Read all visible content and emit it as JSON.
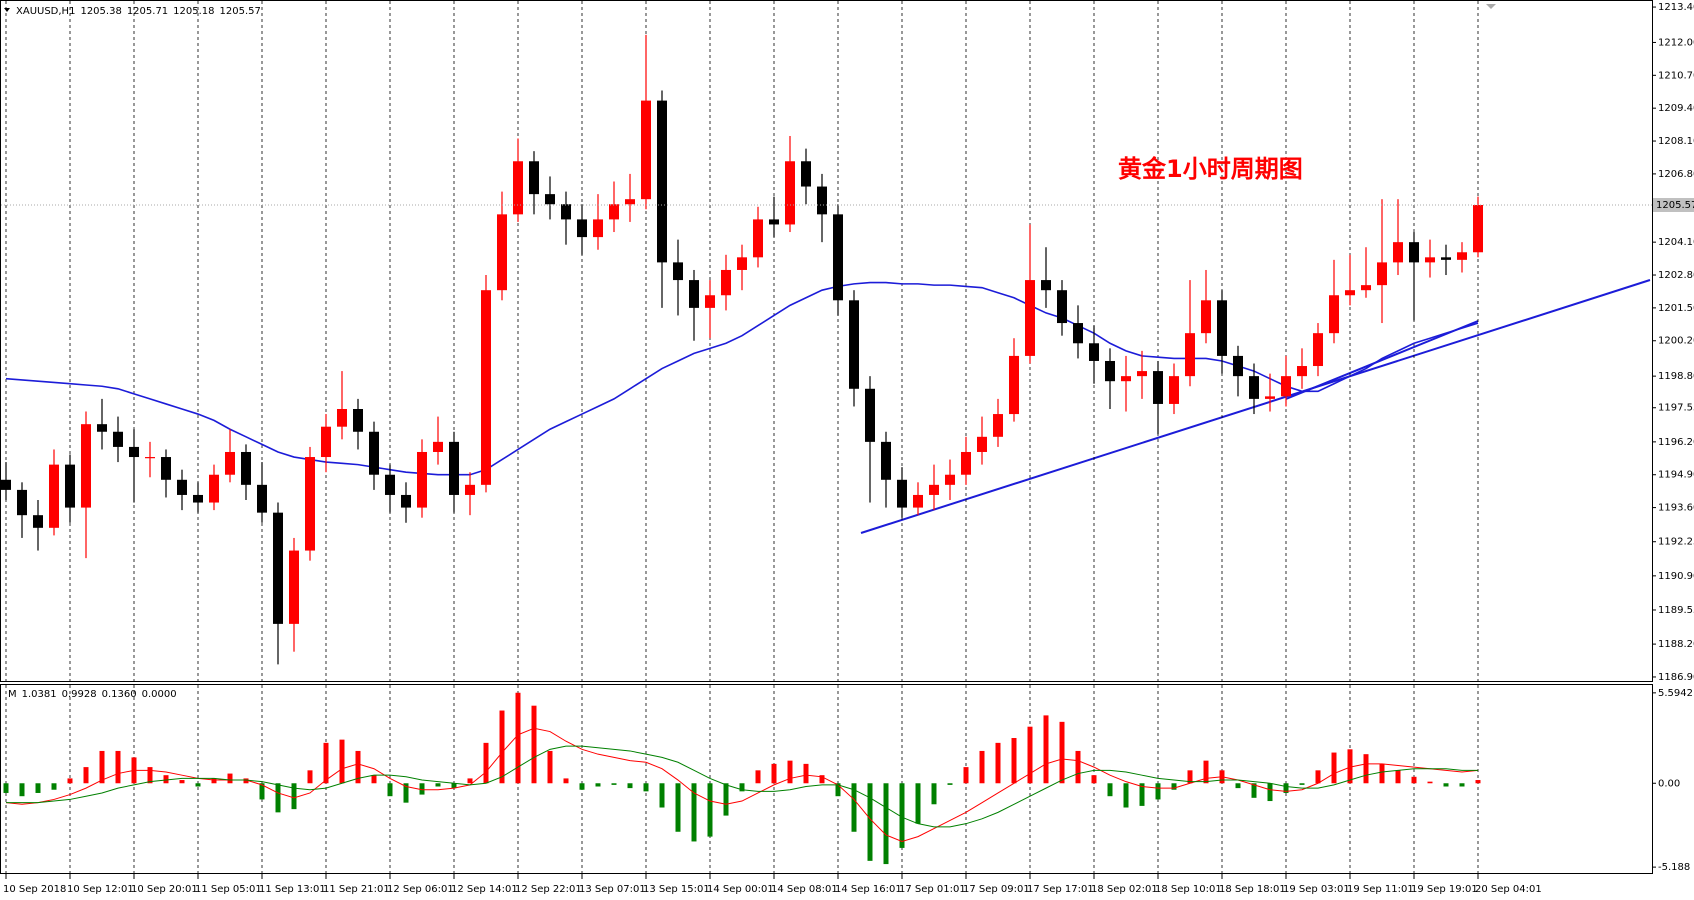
{
  "chart_data": [
    {
      "type": "candlestick",
      "title": "XAUUSD,H1",
      "title_values": [
        1205.38,
        1205.71,
        1205.18,
        1205.57
      ],
      "annotation": "黄金1小时周期图",
      "annotation_color": "#ff0000",
      "categories": [
        "10 Sep 2018",
        null,
        null,
        null,
        "10 Sep 12:01",
        null,
        null,
        null,
        "10 Sep 20:01",
        null,
        null,
        null,
        "11 Sep 05:01",
        null,
        null,
        null,
        "11 Sep 13:01",
        null,
        null,
        null,
        "11 Sep 21:01",
        null,
        null,
        null,
        "12 Sep 06:01",
        null,
        null,
        null,
        "12 Sep 14:01",
        null,
        null,
        null,
        "12 Sep 22:01",
        null,
        null,
        null,
        "13 Sep 07:01",
        null,
        null,
        null,
        "13 Sep 15:01",
        null,
        null,
        null,
        "14 Sep 00:01",
        null,
        null,
        null,
        "14 Sep 08:01",
        null,
        null,
        null,
        "14 Sep 16:01",
        null,
        null,
        null,
        "17 Sep 01:01",
        null,
        null,
        null,
        "17 Sep 09:01",
        null,
        null,
        null,
        "17 Sep 17:01",
        null,
        null,
        null,
        "18 Sep 02:01",
        null,
        null,
        null,
        "18 Sep 10:01",
        null,
        null,
        null,
        "18 Sep 18:01",
        null,
        null,
        null,
        "19 Sep 03:01",
        null,
        null,
        null,
        "19 Sep 11:01",
        null,
        null,
        null,
        "19 Sep 19:01",
        null,
        null,
        null,
        "20 Sep 04:01"
      ],
      "candles": [
        [
          1194.7,
          1195.4,
          1193.9,
          1194.3
        ],
        [
          1194.3,
          1194.6,
          1192.4,
          1193.3
        ],
        [
          1193.3,
          1193.9,
          1191.9,
          1192.8
        ],
        [
          1192.8,
          1195.9,
          1192.5,
          1195.3
        ],
        [
          1195.3,
          1195.7,
          1193.0,
          1193.6
        ],
        [
          1193.6,
          1197.4,
          1191.6,
          1196.9
        ],
        [
          1196.9,
          1197.9,
          1195.9,
          1196.6
        ],
        [
          1196.6,
          1197.2,
          1195.4,
          1196.0
        ],
        [
          1196.0,
          1196.7,
          1193.8,
          1195.6
        ],
        [
          1195.6,
          1196.2,
          1194.8,
          1195.6
        ],
        [
          1195.6,
          1195.9,
          1194.0,
          1194.7
        ],
        [
          1194.7,
          1195.1,
          1193.5,
          1194.1
        ],
        [
          1194.1,
          1194.6,
          1193.4,
          1193.8
        ],
        [
          1193.8,
          1195.3,
          1193.5,
          1194.9
        ],
        [
          1194.9,
          1196.7,
          1194.6,
          1195.8
        ],
        [
          1195.8,
          1196.1,
          1193.9,
          1194.5
        ],
        [
          1194.5,
          1195.4,
          1193.0,
          1193.4
        ],
        [
          1193.4,
          1193.8,
          1187.4,
          1189.0
        ],
        [
          1189.0,
          1192.4,
          1187.9,
          1191.9
        ],
        [
          1191.9,
          1196.0,
          1191.5,
          1195.6
        ],
        [
          1195.6,
          1197.3,
          1195.0,
          1196.8
        ],
        [
          1196.8,
          1199.0,
          1196.3,
          1197.5
        ],
        [
          1197.5,
          1197.9,
          1195.9,
          1196.6
        ],
        [
          1196.6,
          1197.0,
          1194.3,
          1194.9
        ],
        [
          1194.9,
          1195.3,
          1193.4,
          1194.1
        ],
        [
          1194.1,
          1194.6,
          1193.0,
          1193.6
        ],
        [
          1193.6,
          1196.3,
          1193.2,
          1195.8
        ],
        [
          1195.8,
          1197.2,
          1195.3,
          1196.2
        ],
        [
          1196.2,
          1196.6,
          1193.4,
          1194.1
        ],
        [
          1194.1,
          1195.0,
          1193.3,
          1194.5
        ],
        [
          1194.5,
          1202.8,
          1194.2,
          1202.2
        ],
        [
          1202.2,
          1206.1,
          1201.8,
          1205.2
        ],
        [
          1205.2,
          1208.2,
          1204.9,
          1207.3
        ],
        [
          1207.3,
          1207.7,
          1205.2,
          1206.0
        ],
        [
          1206.0,
          1206.7,
          1205.0,
          1205.6
        ],
        [
          1205.6,
          1206.1,
          1204.0,
          1205.0
        ],
        [
          1205.0,
          1205.6,
          1203.6,
          1204.3
        ],
        [
          1204.3,
          1206.0,
          1203.8,
          1205.0
        ],
        [
          1205.0,
          1206.5,
          1204.5,
          1205.6
        ],
        [
          1205.6,
          1206.8,
          1204.9,
          1205.8
        ],
        [
          1205.8,
          1212.3,
          1205.4,
          1209.7
        ],
        [
          1209.7,
          1210.1,
          1201.5,
          1203.3
        ],
        [
          1203.3,
          1204.2,
          1201.2,
          1202.6
        ],
        [
          1202.6,
          1203.0,
          1200.2,
          1201.5
        ],
        [
          1201.5,
          1202.6,
          1200.3,
          1202.0
        ],
        [
          1202.0,
          1203.6,
          1201.4,
          1203.0
        ],
        [
          1203.0,
          1204.0,
          1202.2,
          1203.5
        ],
        [
          1203.5,
          1205.5,
          1203.1,
          1205.0
        ],
        [
          1205.0,
          1205.9,
          1204.3,
          1204.8
        ],
        [
          1204.8,
          1208.3,
          1204.5,
          1207.3
        ],
        [
          1207.3,
          1207.8,
          1205.6,
          1206.3
        ],
        [
          1206.3,
          1206.8,
          1204.1,
          1205.2
        ],
        [
          1205.2,
          1205.6,
          1201.2,
          1201.8
        ],
        [
          1201.8,
          1202.2,
          1197.6,
          1198.3
        ],
        [
          1198.3,
          1198.8,
          1193.8,
          1196.2
        ],
        [
          1196.2,
          1196.6,
          1193.6,
          1194.7
        ],
        [
          1194.7,
          1195.2,
          1193.2,
          1193.6
        ],
        [
          1193.6,
          1194.6,
          1193.3,
          1194.1
        ],
        [
          1194.1,
          1195.3,
          1193.5,
          1194.5
        ],
        [
          1194.5,
          1195.5,
          1193.9,
          1194.9
        ],
        [
          1194.9,
          1196.4,
          1194.5,
          1195.8
        ],
        [
          1195.8,
          1197.2,
          1195.3,
          1196.4
        ],
        [
          1196.4,
          1197.9,
          1196.0,
          1197.3
        ],
        [
          1197.3,
          1200.3,
          1197.0,
          1199.6
        ],
        [
          1199.6,
          1204.8,
          1199.3,
          1202.6
        ],
        [
          1202.6,
          1203.9,
          1201.5,
          1202.2
        ],
        [
          1202.2,
          1202.6,
          1200.4,
          1200.9
        ],
        [
          1200.9,
          1201.6,
          1199.5,
          1200.1
        ],
        [
          1200.1,
          1200.8,
          1198.5,
          1199.4
        ],
        [
          1199.4,
          1199.9,
          1197.5,
          1198.6
        ],
        [
          1198.6,
          1199.6,
          1197.4,
          1198.8
        ],
        [
          1198.8,
          1199.8,
          1197.9,
          1199.0
        ],
        [
          1199.0,
          1199.4,
          1196.5,
          1197.7
        ],
        [
          1197.7,
          1199.3,
          1197.3,
          1198.8
        ],
        [
          1198.8,
          1202.6,
          1198.4,
          1200.5
        ],
        [
          1200.5,
          1203.0,
          1200.1,
          1201.8
        ],
        [
          1201.8,
          1202.2,
          1198.9,
          1199.6
        ],
        [
          1199.6,
          1200.0,
          1198.0,
          1198.8
        ],
        [
          1198.8,
          1199.3,
          1197.3,
          1197.9
        ],
        [
          1197.9,
          1198.9,
          1197.4,
          1198.0
        ],
        [
          1198.0,
          1199.6,
          1197.6,
          1198.8
        ],
        [
          1198.8,
          1199.9,
          1198.3,
          1199.2
        ],
        [
          1199.2,
          1200.9,
          1198.8,
          1200.5
        ],
        [
          1200.5,
          1203.4,
          1200.1,
          1202.0
        ],
        [
          1202.0,
          1203.6,
          1201.6,
          1202.2
        ],
        [
          1202.2,
          1203.9,
          1201.9,
          1202.4
        ],
        [
          1202.4,
          1205.8,
          1200.9,
          1203.3
        ],
        [
          1203.3,
          1205.8,
          1202.8,
          1204.1
        ],
        [
          1204.1,
          1204.5,
          1201.0,
          1203.3
        ],
        [
          1203.3,
          1204.2,
          1202.7,
          1203.5
        ],
        [
          1203.5,
          1204.0,
          1202.8,
          1203.4
        ],
        [
          1203.4,
          1204.1,
          1202.9,
          1203.7
        ],
        [
          1203.7,
          1205.9,
          1203.5,
          1205.57
        ]
      ],
      "up_color": "#ff0000",
      "down_color": "#000000",
      "ma": {
        "color": "#1c1cd8",
        "values": [
          1198.7,
          1198.65,
          1198.6,
          1198.55,
          1198.5,
          1198.45,
          1198.4,
          1198.3,
          1198.1,
          1197.9,
          1197.7,
          1197.5,
          1197.3,
          1197.05,
          1196.7,
          1196.4,
          1196.1,
          1195.8,
          1195.6,
          1195.5,
          1195.4,
          1195.35,
          1195.3,
          1195.2,
          1195.1,
          1195.0,
          1194.95,
          1194.9,
          1194.9,
          1194.9,
          1195.1,
          1195.5,
          1195.9,
          1196.3,
          1196.7,
          1197.0,
          1197.3,
          1197.6,
          1197.9,
          1198.3,
          1198.7,
          1199.1,
          1199.4,
          1199.7,
          1199.9,
          1200.1,
          1200.4,
          1200.8,
          1201.2,
          1201.6,
          1201.9,
          1202.2,
          1202.35,
          1202.45,
          1202.5,
          1202.5,
          1202.45,
          1202.45,
          1202.4,
          1202.4,
          1202.35,
          1202.3,
          1202.1,
          1201.9,
          1201.6,
          1201.3,
          1201.1,
          1200.8,
          1200.5,
          1200.1,
          1199.8,
          1199.6,
          1199.55,
          1199.5,
          1199.5,
          1199.5,
          1199.4,
          1199.2,
          1199.0,
          1198.7,
          1198.4,
          1198.2,
          1198.2,
          1198.5,
          1198.8,
          1199.1,
          1199.5,
          1199.8,
          1200.1,
          1200.3,
          1200.5,
          1200.7,
          1200.9
        ]
      },
      "ylim": [
        1186.78,
        1213.6
      ],
      "yticks": [
        {
          "value": 1186.9,
          "label": "1186.90"
        },
        {
          "value": 1188.2,
          "label": "1188.20"
        },
        1189.55,
        {
          "value": 1190.9,
          "label": "1190.90"
        },
        1192.25,
        {
          "value": 1193.6,
          "label": "1193.60"
        },
        {
          "value": 1194.9,
          "label": "1194.90"
        },
        {
          "value": 1196.2,
          "label": "1196.20"
        },
        1197.55,
        {
          "value": 1198.8,
          "label": "1198.80"
        },
        {
          "value": 1200.2,
          "label": "1200.20"
        },
        {
          "value": 1201.5,
          "label": "1201.50"
        },
        {
          "value": 1202.8,
          "label": "1202.80"
        },
        {
          "value": 1204.1,
          "label": "1204.10"
        },
        {
          "value": 1206.8,
          "label": "1206.80"
        },
        {
          "value": 1208.1,
          "label": "1208.10"
        },
        {
          "value": 1209.4,
          "label": "1209.40"
        },
        {
          "value": 1210.7,
          "label": "1210.70"
        },
        {
          "value": 1212,
          "label": "1212.00"
        },
        {
          "value": 1213.4,
          "label": "1213.40"
        }
      ],
      "grid": true
    },
    {
      "type": "macd",
      "title": "M",
      "readings": [
        {
          "value": 1.0381,
          "label": "1.0381"
        },
        {
          "value": 0.9928,
          "label": "0.9928"
        },
        {
          "value": 0.136,
          "label": "0.1360"
        },
        {
          "value": 0,
          "label": "0.0000"
        }
      ],
      "values": [
        -0.6,
        -0.8,
        -0.6,
        -0.4,
        0.3,
        1.0,
        2.0,
        2.0,
        1.6,
        1.0,
        0.5,
        0.2,
        -0.2,
        0.3,
        0.6,
        0.3,
        -1.0,
        -1.8,
        -1.6,
        0.8,
        2.5,
        2.7,
        2.0,
        0.5,
        -0.8,
        -1.2,
        -0.7,
        -0.2,
        -0.3,
        0.3,
        2.5,
        4.5,
        5.6,
        4.8,
        2.0,
        0.3,
        -0.4,
        -0.2,
        -0.1,
        -0.3,
        -0.5,
        -1.5,
        -3.0,
        -3.6,
        -3.3,
        -2.0,
        -0.5,
        0.8,
        1.2,
        1.4,
        1.2,
        0.5,
        -0.8,
        -3.0,
        -4.8,
        -5.0,
        -4.0,
        -2.5,
        -1.3,
        -0.1,
        1.0,
        2.0,
        2.5,
        2.8,
        3.5,
        4.2,
        3.8,
        2.0,
        0.5,
        -0.8,
        -1.5,
        -1.4,
        -1.0,
        -0.4,
        0.8,
        1.4,
        0.8,
        -0.3,
        -0.9,
        -1.1,
        -0.6,
        -0.1,
        0.8,
        1.9,
        2.1,
        1.8,
        1.2,
        0.8,
        0.4,
        0.1,
        -0.2,
        -0.2,
        0.2
      ],
      "up_color": "#ff0000",
      "down_color": "#008000",
      "series": [
        {
          "color": "#ff0000",
          "values": [
            -1.2,
            -1.3,
            -1.2,
            -1.0,
            -0.7,
            -0.3,
            0.2,
            0.6,
            0.8,
            0.8,
            0.7,
            0.5,
            0.3,
            0.2,
            0.2,
            0.2,
            -0.1,
            -0.6,
            -0.9,
            -0.6,
            0.2,
            0.9,
            1.2,
            0.9,
            0.3,
            -0.2,
            -0.4,
            -0.4,
            -0.3,
            -0.1,
            0.7,
            1.9,
            3.0,
            3.4,
            3.2,
            2.6,
            2.1,
            1.8,
            1.6,
            1.4,
            1.3,
            0.9,
            0.2,
            -0.6,
            -1.1,
            -1.3,
            -1.1,
            -0.6,
            -0.1,
            0.3,
            0.5,
            0.4,
            -0.1,
            -1.0,
            -2.2,
            -3.2,
            -3.6,
            -3.3,
            -2.8,
            -2.3,
            -1.8,
            -1.2,
            -0.6,
            0.0,
            0.6,
            1.2,
            1.5,
            1.4,
            1.0,
            0.5,
            0.1,
            -0.2,
            -0.3,
            -0.3,
            0.0,
            0.3,
            0.4,
            0.2,
            -0.1,
            -0.4,
            -0.5,
            -0.4,
            0.0,
            0.6,
            1.0,
            1.2,
            1.2,
            1.1,
            1.0,
            0.9,
            0.8,
            0.7,
            0.8
          ]
        },
        {
          "color": "#008000",
          "values": [
            -1.2,
            -1.2,
            -1.2,
            -1.1,
            -1.0,
            -0.8,
            -0.6,
            -0.3,
            -0.1,
            0.1,
            0.2,
            0.3,
            0.3,
            0.3,
            0.2,
            0.2,
            0.1,
            -0.1,
            -0.3,
            -0.4,
            -0.3,
            0.0,
            0.3,
            0.5,
            0.5,
            0.4,
            0.2,
            0.1,
            0.0,
            -0.1,
            0.0,
            0.4,
            1.0,
            1.6,
            2.1,
            2.3,
            2.3,
            2.2,
            2.1,
            2.0,
            1.8,
            1.6,
            1.3,
            0.8,
            0.3,
            -0.1,
            -0.4,
            -0.5,
            -0.5,
            -0.4,
            -0.2,
            -0.1,
            -0.1,
            -0.4,
            -0.9,
            -1.5,
            -2.1,
            -2.5,
            -2.7,
            -2.7,
            -2.5,
            -2.2,
            -1.8,
            -1.3,
            -0.8,
            -0.3,
            0.2,
            0.6,
            0.8,
            0.8,
            0.7,
            0.5,
            0.3,
            0.2,
            0.1,
            0.1,
            0.2,
            0.2,
            0.1,
            0.0,
            -0.2,
            -0.3,
            -0.3,
            -0.1,
            0.2,
            0.5,
            0.7,
            0.8,
            0.9,
            0.9,
            0.9,
            0.8,
            0.8
          ]
        }
      ],
      "ylim": [
        -5.49,
        6.08
      ],
      "yticks": [
        5.5942,
        {
          "value": 0,
          "label": "0.00"
        },
        -5.188
      ]
    }
  ]
}
